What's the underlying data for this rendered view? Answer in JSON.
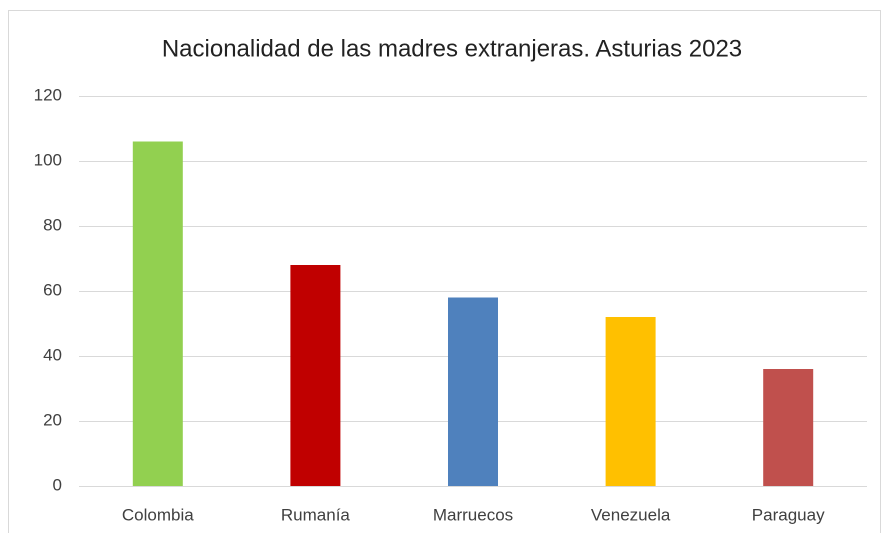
{
  "chart_data": {
    "type": "bar",
    "title": "Nacionalidad de las madres extranjeras. Asturias 2023",
    "categories": [
      "Colombia",
      "Rumanía",
      "Marruecos",
      "Venezuela",
      "Paraguay"
    ],
    "values": [
      106,
      68,
      58,
      52,
      36
    ],
    "colors": [
      "#92d050",
      "#c00000",
      "#4f81bd",
      "#ffc000",
      "#c0504d"
    ],
    "ylim": [
      0,
      120
    ],
    "yticks": [
      0,
      20,
      40,
      60,
      80,
      100,
      120
    ],
    "grid": true
  }
}
